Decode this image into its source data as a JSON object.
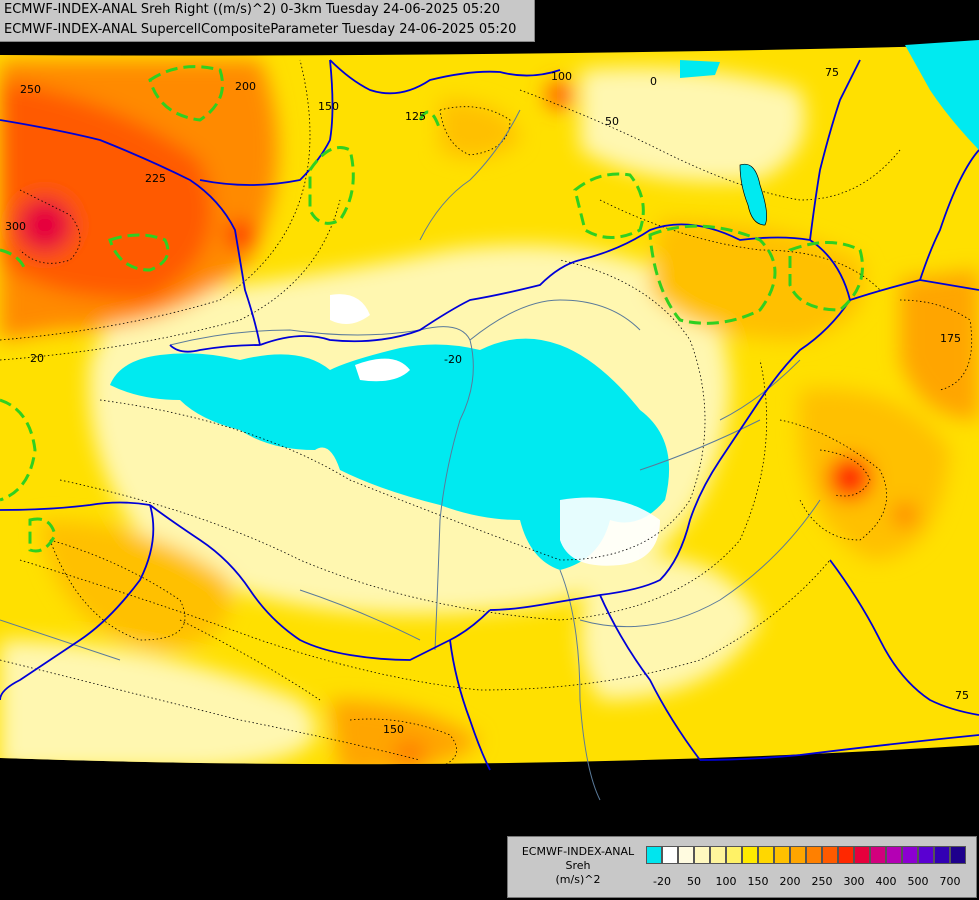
{
  "title": {
    "line1": "ECMWF-INDEX-ANAL Sreh Right ((m/s)^2) 0-3km Tuesday 24-06-2025 05:20",
    "line2": "ECMWF-INDEX-ANAL SupercellCompositeParameter Tuesday 24-06-2025 05:20"
  },
  "legend": {
    "model": "ECMWF-INDEX-ANAL",
    "field": "Sreh",
    "unit": "(m/s)^2",
    "colors": [
      "#00e5ee",
      "#ffffff",
      "#fffbe0",
      "#fff8bf",
      "#fff59c",
      "#fff266",
      "#ffea00",
      "#ffd700",
      "#ffc000",
      "#ffa500",
      "#ff8000",
      "#ff5a00",
      "#ff2800",
      "#e6003c",
      "#d2007d",
      "#b400b4",
      "#8c00d2",
      "#5a00d2",
      "#3200b4",
      "#1e008c"
    ],
    "ticks": [
      "-20",
      "50",
      "100",
      "150",
      "200",
      "250",
      "300",
      "400",
      "500",
      "700"
    ]
  },
  "contour_labels": [
    "250",
    "200",
    "150",
    "125",
    "100",
    "0",
    "75",
    "50",
    "20",
    "175",
    "225",
    "300",
    "150",
    "75",
    "-20"
  ],
  "colors": {
    "boundary": "#0000d8",
    "river": "#5a7a9a",
    "scp_contour": "#30d020",
    "background": "#000000"
  }
}
